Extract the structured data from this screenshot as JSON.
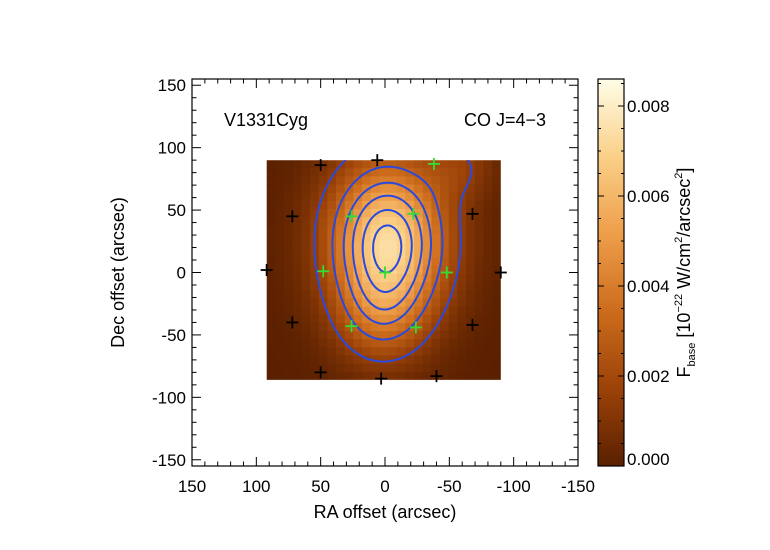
{
  "chart_data": {
    "type": "heatmap",
    "xlabel": "RA offset (arcsec)",
    "ylabel": "Dec offset (arcsec)",
    "xlim": [
      150,
      -150
    ],
    "ylim": [
      -155,
      155
    ],
    "xticks": [
      150,
      100,
      50,
      0,
      -50,
      -100,
      -150
    ],
    "yticks": [
      150,
      100,
      50,
      0,
      -50,
      -100,
      -150
    ],
    "annotations": {
      "source": "V1331Cyg",
      "line": "CO J=4−3"
    },
    "colorbar": {
      "label": "F",
      "label_sub": "base",
      "label_rest": " [10",
      "label_exp": "−22",
      "label_unit": " W/cm",
      "label_unit_exp": "2",
      "label_unit2": "/arcsec",
      "label_unit2_exp": "2",
      "label_close": "]",
      "range": [
        0.0,
        0.0086
      ],
      "ticks": [
        0.0,
        0.002,
        0.004,
        0.006,
        0.008
      ],
      "tick_labels": [
        "0.000",
        "0.002",
        "0.004",
        "0.006",
        "0.008"
      ]
    },
    "map_extent": {
      "ra": [
        92,
        -90
      ],
      "dec": [
        -86,
        90
      ]
    },
    "peak": {
      "ra": -2,
      "dec": 25,
      "value": 0.0084
    },
    "peak_width": {
      "ra": 32,
      "dec": 45
    },
    "contour_levels": [
      0.0015,
      0.003,
      0.0042,
      0.0052,
      0.0062,
      0.007
    ],
    "black_crosses": [
      [
        50,
        86
      ],
      [
        6,
        90
      ],
      [
        72,
        45
      ],
      [
        -68,
        47
      ],
      [
        92,
        2
      ],
      [
        72,
        -40
      ],
      [
        -68,
        -42
      ],
      [
        50,
        -80
      ],
      [
        3,
        -85
      ],
      [
        -40,
        -83
      ],
      [
        -90,
        0
      ]
    ],
    "green_crosses": [
      [
        -38,
        87
      ],
      [
        26,
        45
      ],
      [
        -22,
        47
      ],
      [
        48,
        1
      ],
      [
        0,
        0
      ],
      [
        -48,
        0
      ],
      [
        26,
        -43
      ],
      [
        -24,
        -44
      ]
    ],
    "colors": {
      "contour": "#2a4adf",
      "black_cross": "#000000",
      "green_cross": "#33dd33",
      "colormap": [
        "#5a2000",
        "#9b4208",
        "#cc6c1c",
        "#ee9e4a",
        "#fad088",
        "#fffde8"
      ]
    }
  }
}
